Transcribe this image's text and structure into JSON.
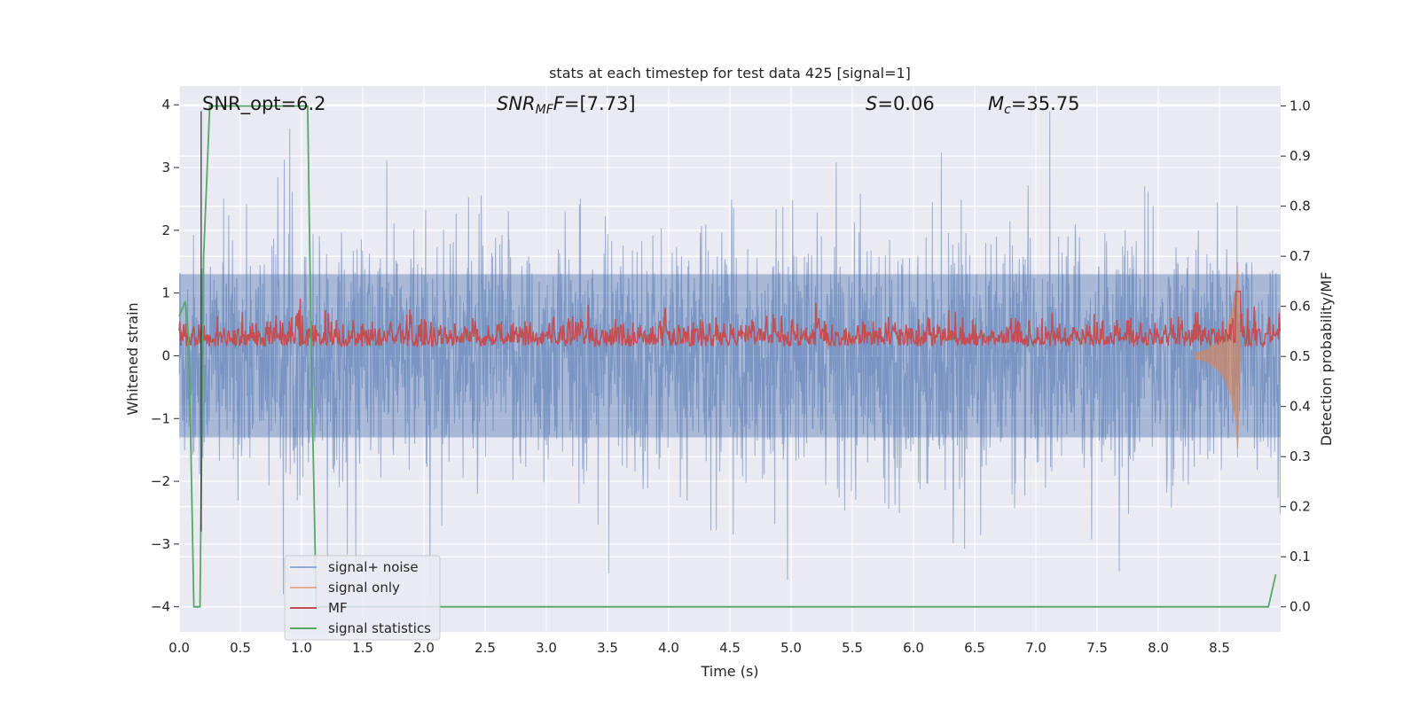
{
  "chart_data": {
    "type": "line",
    "title": "stats at each timestep for test data 425 [signal=1]",
    "xlabel": "Time (s)",
    "ylabel_left": "Whitened strain",
    "ylabel_right": "Detection probability/MF",
    "xlim": [
      0.0,
      9.0
    ],
    "ylim_left": [
      -4.4,
      4.3
    ],
    "ylim_right": [
      -0.05,
      1.04
    ],
    "grid": true,
    "legend_position": "lower-left",
    "x_ticks": [
      "0.0",
      "0.5",
      "1.0",
      "1.5",
      "2.0",
      "2.5",
      "3.0",
      "3.5",
      "4.0",
      "4.5",
      "5.0",
      "5.5",
      "6.0",
      "6.5",
      "7.0",
      "7.5",
      "8.0",
      "8.5"
    ],
    "x_tick_values": [
      0.0,
      0.5,
      1.0,
      1.5,
      2.0,
      2.5,
      3.0,
      3.5,
      4.0,
      4.5,
      5.0,
      5.5,
      6.0,
      6.5,
      7.0,
      7.5,
      8.0,
      8.5
    ],
    "y_left_ticks": [
      "4",
      "3",
      "2",
      "1",
      "0",
      "−1",
      "−2",
      "−3",
      "−4"
    ],
    "y_left_tick_values": [
      4,
      3,
      2,
      1,
      0,
      -1,
      -2,
      -3,
      -4
    ],
    "y_right_ticks": [
      "1.0",
      "0.9",
      "0.8",
      "0.7",
      "0.6",
      "0.5",
      "0.4",
      "0.3",
      "0.2",
      "0.1",
      "0.0"
    ],
    "y_right_tick_values": [
      1.0,
      0.9,
      0.8,
      0.7,
      0.6,
      0.5,
      0.4,
      0.3,
      0.2,
      0.1,
      0.0
    ],
    "annotations": {
      "snr_opt": "SNR_opt=6.2",
      "snr_mf_main": "SNR",
      "snr_mf_sub": "MF",
      "snr_mf_value": "=[7.73]",
      "s_main": "S",
      "s_value": "=0.06",
      "mc_main": "M",
      "mc_sub": "c",
      "mc_value": "=35.75"
    },
    "marker_line_x": 0.18,
    "series": [
      {
        "name": "signal+ noise",
        "color": "#4c72b0",
        "axis": "left",
        "kind": "noise band",
        "amplitude_typical": 1.8,
        "peak_range": [
          -3.8,
          3.9
        ]
      },
      {
        "name": "signal only",
        "color": "#dd8452",
        "axis": "left",
        "kind": "chirp",
        "x": [
          8.3,
          8.4,
          8.5,
          8.55,
          8.6,
          8.63,
          8.65,
          8.67
        ],
        "envelope": [
          0.05,
          0.1,
          0.25,
          0.4,
          0.7,
          1.0,
          1.5,
          0.0
        ]
      },
      {
        "name": "MF",
        "color": "#c44e52",
        "axis": "right",
        "baseline": 0.53,
        "spread": 0.025,
        "peak": {
          "x": 8.65,
          "y": 0.63
        }
      },
      {
        "name": "signal statistics",
        "color": "#55a868",
        "axis": "right",
        "x": [
          0.0,
          0.05,
          0.08,
          0.12,
          0.17,
          0.2,
          0.25,
          1.0,
          1.05,
          1.08,
          1.12,
          8.9,
          8.96
        ],
        "y": [
          0.58,
          0.61,
          0.53,
          0.0,
          0.0,
          0.7,
          1.0,
          1.0,
          1.0,
          0.5,
          0.0,
          0.0,
          0.065
        ]
      }
    ]
  }
}
